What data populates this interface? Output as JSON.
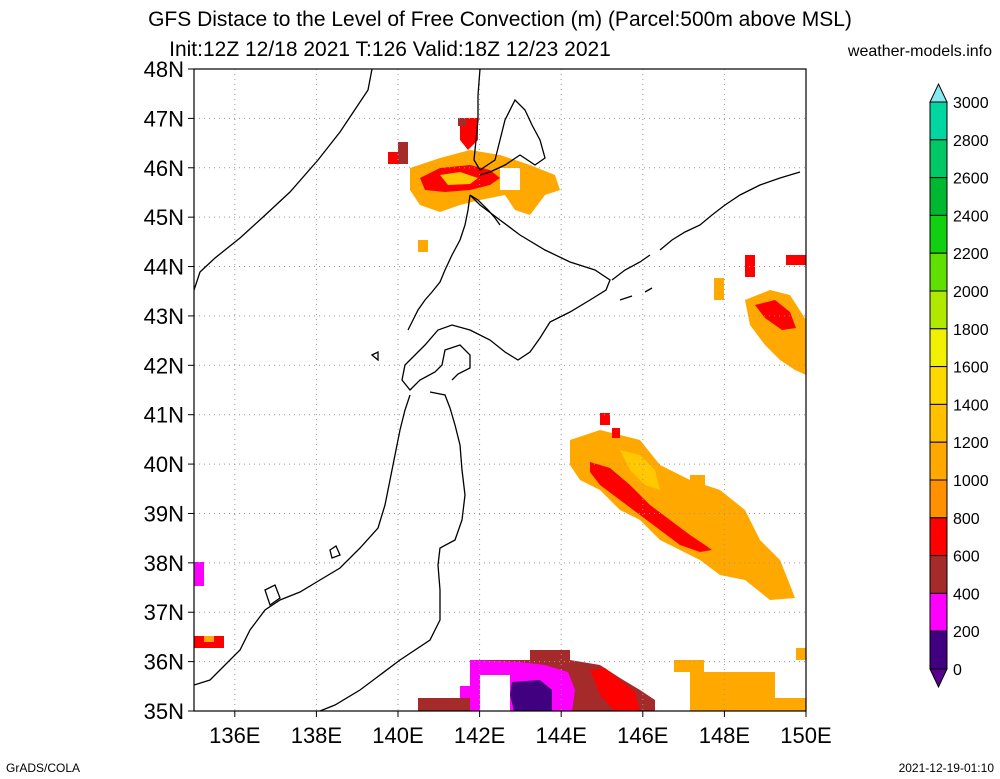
{
  "title": {
    "line1": "GFS Distace to the Level of Free Convection (m) (Parcel:500m above MSL)",
    "line2": "Init:12Z 12/18 2021 T:126 Valid:18Z 12/23 2021"
  },
  "site": "weather-models.info",
  "footer": {
    "left": "GrADS/COLA",
    "right": "2021-12-19-01:10"
  },
  "map": {
    "lat_labels": [
      "48N",
      "47N",
      "46N",
      "45N",
      "44N",
      "43N",
      "42N",
      "41N",
      "40N",
      "39N",
      "38N",
      "37N",
      "36N",
      "35N"
    ],
    "lon_labels": [
      "136E",
      "138E",
      "140E",
      "142E",
      "144E",
      "146E",
      "148E",
      "150E"
    ],
    "lon_range": [
      135,
      150
    ],
    "lat_range": [
      35,
      48
    ],
    "grid": true
  },
  "colorbar": {
    "labels": [
      "3000",
      "2800",
      "2600",
      "2400",
      "2200",
      "2000",
      "1800",
      "1600",
      "1400",
      "1200",
      "1000",
      "800",
      "600",
      "400",
      "200",
      "0"
    ],
    "colors": [
      "#4fe8e0",
      "#00d6a0",
      "#00c864",
      "#00b830",
      "#10d010",
      "#60e000",
      "#b0e800",
      "#f0f000",
      "#ffd800",
      "#ffc000",
      "#ffa800",
      "#ff9000",
      "#ff0000",
      "#a52a2a",
      "#ff00ff",
      "#400080"
    ],
    "top_arrow_color": "#88e8f0",
    "bottom_arrow_color": "#5a0090"
  }
}
